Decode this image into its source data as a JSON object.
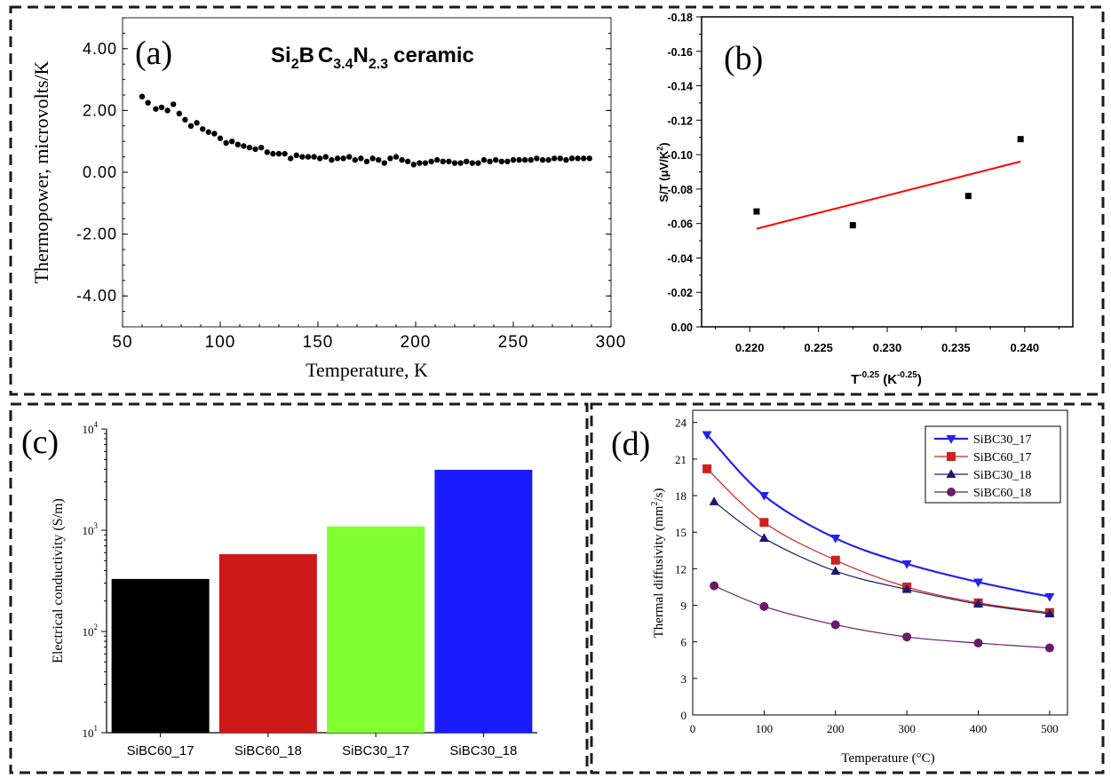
{
  "chart_data": [
    {
      "panel_label": "(a)",
      "type": "scatter",
      "title": {
        "main": "Si",
        "sub1": "2",
        "mid1": "B",
        "mid2": "C",
        "sub2": "3.4",
        "mid3": "N",
        "sub3": "2.3",
        "tail": "ceramic"
      },
      "xlabel": "Temperature, K",
      "ylabel": "Thermopower, microvolts/K",
      "xlim": [
        50,
        300
      ],
      "ylim": [
        -5,
        5
      ],
      "xticks": [
        50,
        100,
        150,
        200,
        250,
        300
      ],
      "yticks": [
        -4,
        -2,
        0,
        2,
        4
      ],
      "ytick_labels": [
        "-4.00",
        "-2.00",
        "0.00",
        "2.00",
        "4.00"
      ],
      "x": [
        60,
        63,
        67,
        70,
        73,
        76,
        79,
        82,
        85,
        88,
        91,
        94,
        97,
        100,
        103,
        106,
        109,
        112,
        115,
        118,
        121,
        124,
        127,
        130,
        133,
        136,
        139,
        142,
        145,
        148,
        151,
        154,
        157,
        160,
        163,
        166,
        169,
        172,
        175,
        178,
        181,
        184,
        187,
        190,
        193,
        196,
        199,
        202,
        205,
        208,
        211,
        214,
        217,
        220,
        223,
        226,
        229,
        232,
        235,
        238,
        241,
        244,
        247,
        250,
        253,
        256,
        259,
        262,
        265,
        268,
        271,
        274,
        277,
        280,
        283,
        286,
        289
      ],
      "y": [
        2.45,
        2.25,
        2.05,
        2.1,
        2.0,
        2.2,
        1.9,
        1.7,
        1.5,
        1.6,
        1.4,
        1.3,
        1.25,
        1.1,
        0.95,
        1.0,
        0.9,
        0.85,
        0.8,
        0.75,
        0.8,
        0.65,
        0.6,
        0.6,
        0.6,
        0.45,
        0.55,
        0.5,
        0.5,
        0.5,
        0.45,
        0.5,
        0.4,
        0.45,
        0.45,
        0.5,
        0.4,
        0.45,
        0.35,
        0.45,
        0.4,
        0.3,
        0.45,
        0.5,
        0.4,
        0.35,
        0.25,
        0.3,
        0.3,
        0.35,
        0.4,
        0.35,
        0.35,
        0.3,
        0.3,
        0.35,
        0.3,
        0.3,
        0.4,
        0.35,
        0.4,
        0.35,
        0.35,
        0.4,
        0.4,
        0.4,
        0.4,
        0.45,
        0.4,
        0.4,
        0.45,
        0.45,
        0.4,
        0.45,
        0.45,
        0.45,
        0.45
      ]
    },
    {
      "panel_label": "(b)",
      "type": "scatter",
      "xlabel": {
        "base": "T",
        "sup": "-0.25",
        "unit_open": " (K",
        "unit_sup": "-0.25",
        "unit_close": ")"
      },
      "ylabel": {
        "pre": "S/T (μV/K",
        "sup": "2",
        "post": ")"
      },
      "xlim": [
        0.2165,
        0.2435
      ],
      "ylim": [
        0.0,
        -0.18
      ],
      "xticks": [
        0.22,
        0.225,
        0.23,
        0.235,
        0.24
      ],
      "xtick_labels": [
        "0.220",
        "0.225",
        "0.230",
        "0.235",
        "0.240"
      ],
      "yticks": [
        0.0,
        -0.02,
        -0.04,
        -0.06,
        -0.08,
        -0.1,
        -0.12,
        -0.14,
        -0.16,
        -0.18
      ],
      "ytick_labels": [
        "0.00",
        "-0.02",
        "-0.04",
        "-0.06",
        "-0.08",
        "-0.10",
        "-0.12",
        "-0.14",
        "-0.16",
        "-0.18"
      ],
      "x": [
        0.2205,
        0.2275,
        0.2359,
        0.2397
      ],
      "y": [
        -0.067,
        -0.059,
        -0.076,
        -0.109
      ],
      "fit": {
        "x": [
          0.2205,
          0.2397
        ],
        "y": [
          -0.057,
          -0.096
        ],
        "color": "#ff0000"
      }
    },
    {
      "panel_label": "(c)",
      "type": "bar",
      "yscale": "log",
      "ylabel": "Electrical conductivity (S/m)",
      "ylim": [
        10,
        10000
      ],
      "ytick_labels": [
        {
          "base": "10",
          "exp": "1"
        },
        {
          "base": "10",
          "exp": "2"
        },
        {
          "base": "10",
          "exp": "3"
        },
        {
          "base": "10",
          "exp": "4"
        }
      ],
      "categories": [
        "SiBC60_17",
        "SiBC60_18",
        "SiBC30_17",
        "SiBC30_18"
      ],
      "values": [
        330,
        580,
        1090,
        3950
      ],
      "colors": [
        "#000000",
        "#cc1a1a",
        "#80ff33",
        "#1a1aff"
      ]
    },
    {
      "panel_label": "(d)",
      "type": "line",
      "xlabel": "Temperature (°C)",
      "ylabel": {
        "pre": "Thermal diffusivity (mm",
        "sup": "2",
        "post": "/s)"
      },
      "xlim": [
        0,
        525
      ],
      "ylim": [
        0,
        25
      ],
      "xticks": [
        0,
        100,
        200,
        300,
        400,
        500
      ],
      "yticks": [
        0,
        3,
        6,
        9,
        12,
        15,
        18,
        21,
        24
      ],
      "legend": "top-right",
      "series": [
        {
          "name": "SiBC30_17",
          "marker": "triangle-down",
          "color": "#2222ee",
          "x": [
            20,
            100,
            200,
            300,
            400,
            500
          ],
          "y": [
            23.0,
            18.0,
            14.5,
            12.4,
            10.9,
            9.7
          ]
        },
        {
          "name": "SiBC60_17",
          "marker": "square",
          "color": "#cc2222",
          "x": [
            20,
            100,
            200,
            300,
            400,
            500
          ],
          "y": [
            20.2,
            15.8,
            12.7,
            10.5,
            9.2,
            8.4
          ]
        },
        {
          "name": "SiBC30_18",
          "marker": "triangle-up",
          "color": "#1a1a70",
          "x": [
            30,
            100,
            200,
            300,
            400,
            500
          ],
          "y": [
            17.5,
            14.5,
            11.8,
            10.3,
            9.1,
            8.3
          ]
        },
        {
          "name": "SiBC60_18",
          "marker": "circle",
          "color": "#6a1a6a",
          "x": [
            30,
            100,
            200,
            300,
            400,
            500
          ],
          "y": [
            10.6,
            8.9,
            7.4,
            6.4,
            5.9,
            5.5
          ]
        }
      ]
    }
  ]
}
